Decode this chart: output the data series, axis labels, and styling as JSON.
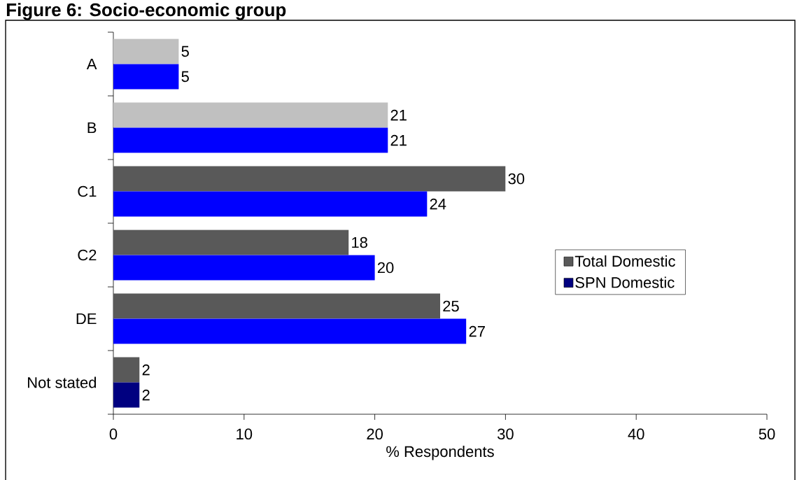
{
  "chart_data": {
    "type": "bar",
    "orientation": "horizontal",
    "title": "Figure 6: Socio-economic group",
    "xlabel": "% Respondents",
    "categories": [
      "A",
      "B",
      "C1",
      "C2",
      "DE",
      "Not stated"
    ],
    "series": [
      {
        "name": "Total Domestic",
        "color": "#595959",
        "colors": [
          "#c0c0c0",
          "#c0c0c0",
          "#595959",
          "#595959",
          "#595959",
          "#595959"
        ],
        "values": [
          5,
          21,
          30,
          18,
          25,
          2
        ]
      },
      {
        "name": "SPN Domestic",
        "color": "#000080",
        "colors": [
          "#0000ff",
          "#0000ff",
          "#0000ff",
          "#0000ff",
          "#0000ff",
          "#000080"
        ],
        "values": [
          5,
          21,
          24,
          20,
          27,
          2
        ]
      }
    ],
    "xlim": [
      0,
      50
    ],
    "xticks": [
      0,
      10,
      20,
      30,
      40,
      50
    ],
    "data_labels": true,
    "legend": "right"
  }
}
